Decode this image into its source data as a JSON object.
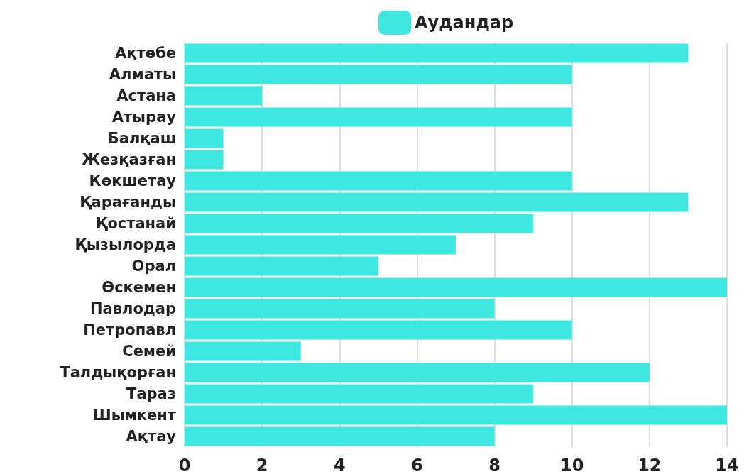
{
  "chart_data": {
    "type": "bar",
    "orientation": "horizontal",
    "categories": [
      "Ақтөбе",
      "Алматы",
      "Астана",
      "Атырау",
      "Балқаш",
      "Жезқазған",
      "Көкшетау",
      "Қарағанды",
      "Қостанай",
      "Қызылорда",
      "Орал",
      "Өскемен",
      "Павлодар",
      "Петропавл",
      "Семей",
      "Талдықорған",
      "Тараз",
      "Шымкент",
      "Ақтау"
    ],
    "series": [
      {
        "name": "Аудандар",
        "color": "#3ee8e0",
        "values": [
          13,
          10,
          2,
          10,
          1,
          1,
          10,
          13,
          9,
          7,
          5,
          14,
          8,
          10,
          3,
          12,
          9,
          14,
          8
        ]
      }
    ],
    "xlim": [
      0,
      14
    ],
    "xticks": [
      0,
      2,
      4,
      6,
      8,
      10,
      12,
      14
    ],
    "grid": "x",
    "legend": "top"
  }
}
